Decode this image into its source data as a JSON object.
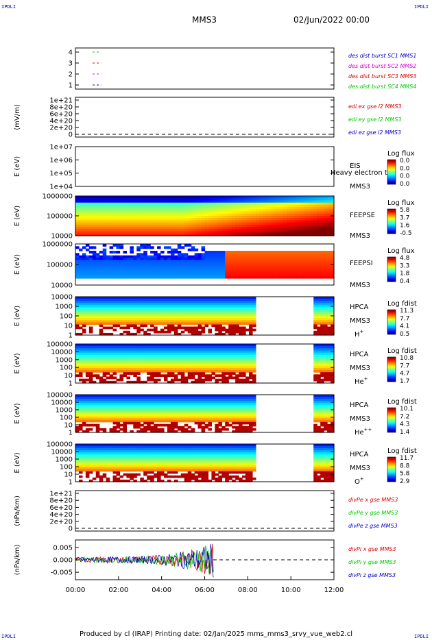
{
  "header": {
    "spacecraft": "MMS3",
    "date": "02/Jun/2022 00:00",
    "corner_tl": "IPDLI",
    "corner_tr": "IPDLI",
    "corner_bl": "IPDLI",
    "corner_br": "IPDLI"
  },
  "footer": "Produced by cl (IRAP)   Printing date: 02/Jan/2025   mms_mms3_srvy_vue_web2.cl",
  "chart_data": {
    "type": "stacked-timeseries",
    "x_ticks": [
      "00:00",
      "02:00",
      "04:00",
      "06:00",
      "08:00",
      "10:00",
      "12:00"
    ],
    "x_range_hours": [
      0,
      12
    ],
    "panels": [
      {
        "id": "burst",
        "kind": "line",
        "ylabel": "",
        "yticks": [
          "4",
          "3",
          "2",
          "1"
        ],
        "legend": [
          {
            "text": "des dist burst SC1 MMS1",
            "color": "#0000c8"
          },
          {
            "text": "des dist burst SC2 MMS2",
            "color": "#e000e0"
          },
          {
            "text": "des dist burst SC3 MMS3",
            "color": "#e00000"
          },
          {
            "text": "des dist burst SC4 MMS4",
            "color": "#00c800"
          }
        ],
        "segments": [
          {
            "level": 4,
            "t": [
              0.8,
              1.2
            ],
            "color": "#00c800"
          },
          {
            "level": 3,
            "t": [
              0.8,
              1.2
            ],
            "color": "#e00000"
          },
          {
            "level": 2,
            "t": [
              0.8,
              1.2
            ],
            "color": "#e000e0"
          },
          {
            "level": 1,
            "t": [
              0.8,
              1.2
            ],
            "color": "#0000c8"
          }
        ]
      },
      {
        "id": "edi",
        "kind": "line",
        "ylabel": "(mV/m)",
        "yticks": [
          "1e+21",
          "8e+20",
          "6e+20",
          "4e+20",
          "2e+20",
          "0"
        ],
        "legend": [
          {
            "text": "edi ex gse l2 MMS3",
            "color": "#e00000"
          },
          {
            "text": "edi ey gse l2 MMS3",
            "color": "#00c800"
          },
          {
            "text": "edi ez gse l2 MMS3",
            "color": "#0000c8"
          }
        ]
      },
      {
        "id": "eis",
        "kind": "spectrogram",
        "ylabel": "E (eV)",
        "yticks": [
          "1e+07",
          "1e+06",
          "1e+05",
          "1e+04"
        ],
        "instrument": "EIS",
        "overlay_label": "Heavy electron tof",
        "sc": "MMS3",
        "cbar_title": "Log flux",
        "cbar_ticks": [
          "0.0",
          "0.0",
          "0.0",
          "0.0"
        ]
      },
      {
        "id": "feepse",
        "kind": "spectrogram",
        "ylabel": "E (eV)",
        "yticks": [
          "1000000",
          "100000",
          "10000"
        ],
        "instrument": "FEEPSE",
        "sc": "MMS3",
        "cbar_title": "Log flux",
        "cbar_ticks": [
          "5.8",
          "3.7",
          "1.6",
          "-0.5"
        ]
      },
      {
        "id": "feepsi",
        "kind": "spectrogram",
        "ylabel": "E (eV)",
        "yticks": [
          "1000000",
          "100000",
          "10000"
        ],
        "instrument": "FEEPSI",
        "sc": "MMS3",
        "cbar_title": "Log flux",
        "cbar_ticks": [
          "4.8",
          "3.3",
          "1.8",
          "0.4"
        ]
      },
      {
        "id": "hpca_h",
        "kind": "spectrogram",
        "ylabel": "E (eV)",
        "yticks": [
          "10000",
          "1000",
          "100",
          "10",
          "1"
        ],
        "instrument": "HPCA",
        "sc": "MMS3",
        "species": "H",
        "species_sup": "+",
        "cbar_title": "Log fdist",
        "cbar_ticks": [
          "11.3",
          "7.7",
          "4.1",
          "0.5"
        ],
        "gap_hours": [
          8.4,
          11.0
        ]
      },
      {
        "id": "hpca_he",
        "kind": "spectrogram",
        "ylabel": "E (eV)",
        "yticks": [
          "100000",
          "10000",
          "1000",
          "100",
          "10",
          "1"
        ],
        "instrument": "HPCA",
        "sc": "MMS3",
        "species": "He",
        "species_sup": "+",
        "cbar_title": "Log fdist",
        "cbar_ticks": [
          "10.8",
          "7.7",
          "4.7",
          "1.7"
        ],
        "gap_hours": [
          8.4,
          11.0
        ]
      },
      {
        "id": "hpca_he2",
        "kind": "spectrogram",
        "ylabel": "E (eV)",
        "yticks": [
          "100000",
          "10000",
          "1000",
          "100",
          "10",
          "1"
        ],
        "instrument": "HPCA",
        "sc": "MMS3",
        "species": "He",
        "species_sup": "++",
        "cbar_title": "Log fdist",
        "cbar_ticks": [
          "10.1",
          "7.2",
          "4.3",
          "1.4"
        ],
        "gap_hours": [
          8.4,
          11.0
        ]
      },
      {
        "id": "hpca_o",
        "kind": "spectrogram",
        "ylabel": "E (eV)",
        "yticks": [
          "100000",
          "10000",
          "1000",
          "100",
          "10",
          "1"
        ],
        "instrument": "HPCA",
        "sc": "MMS3",
        "species": "O",
        "species_sup": "+",
        "cbar_title": "Log fdist",
        "cbar_ticks": [
          "11.7",
          "8.8",
          "5.8",
          "2.9"
        ],
        "gap_hours": [
          8.4,
          11.0
        ]
      },
      {
        "id": "divpe",
        "kind": "line",
        "ylabel": "(nPa/km)",
        "yticks": [
          "1e+21",
          "8e+20",
          "6e+20",
          "4e+20",
          "2e+20",
          "0"
        ],
        "legend": [
          {
            "text": "divPe x gse MMS3",
            "color": "#e00000"
          },
          {
            "text": "divPe y gse MMS3",
            "color": "#00c800"
          },
          {
            "text": "divPe z gse MMS3",
            "color": "#0000c8"
          }
        ]
      },
      {
        "id": "divpi",
        "kind": "line",
        "ylabel": "(nPa/km)",
        "yticks": [
          "0.005",
          "0.000",
          "-0.005"
        ],
        "y_range": [
          -0.008,
          0.008
        ],
        "legend": [
          {
            "text": "divPi x gse MMS3",
            "color": "#e00000"
          },
          {
            "text": "divPi y gse MMS3",
            "color": "#00c800"
          },
          {
            "text": "divPi z gse MMS3",
            "color": "#0000c8"
          }
        ],
        "data_end_hours": 6.4
      }
    ]
  }
}
